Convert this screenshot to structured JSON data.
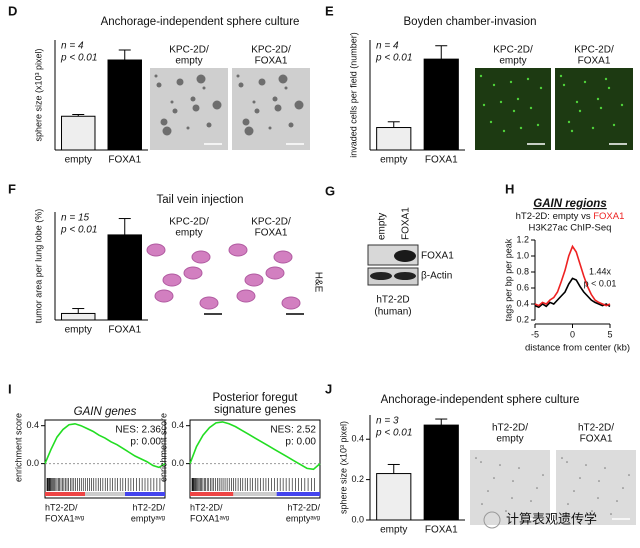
{
  "chart_data": [
    {
      "type": "bar",
      "label": "D",
      "title": "Anchorage-independent sphere culture",
      "y_label": "sphere size (x10³ pixel)",
      "annotations": [
        "n = 4",
        "p < 0.01"
      ],
      "categories": [
        "empty",
        "FOXA1"
      ],
      "values": [
        1.35,
        3.6
      ],
      "errors": [
        0.07,
        0.4
      ],
      "colors": [
        "#eeeeee",
        "#000000"
      ],
      "ylim": [
        0,
        4.4
      ],
      "image_captions": [
        [
          "KPC-2D/",
          "empty"
        ],
        [
          "KPC-2D/",
          "FOXA1"
        ]
      ]
    },
    {
      "type": "bar",
      "label": "E",
      "title": "Boyden chamber-invasion",
      "y_label": "invaded cells per field (number)",
      "annotations": [
        "n = 4",
        "p < 0.01"
      ],
      "categories": [
        "empty",
        "FOXA1"
      ],
      "values": [
        47,
        190
      ],
      "errors": [
        12,
        28
      ],
      "colors": [
        "#eeeeee",
        "#000000"
      ],
      "ylim": [
        0,
        230
      ],
      "image_captions": [
        [
          "KPC-2D/",
          "empty"
        ],
        [
          "KPC-2D/",
          "FOXA1"
        ]
      ]
    },
    {
      "type": "bar",
      "label": "F",
      "title": "Tail vein injection",
      "y_label": "tumor area per lung lobe (%)",
      "annotations": [
        "n = 15",
        "p < 0.01"
      ],
      "categories": [
        "empty",
        "FOXA1"
      ],
      "values": [
        4,
        52
      ],
      "errors": [
        3,
        10
      ],
      "colors": [
        "#eeeeee",
        "#000000"
      ],
      "ylim": [
        0,
        66
      ],
      "image_captions": [
        [
          "KPC-2D/",
          "empty"
        ],
        [
          "KPC-2D/",
          "FOXA1"
        ]
      ],
      "image_note": "H&E"
    },
    {
      "type": "line",
      "label": "H",
      "title": "GAIN regions",
      "subtitle": [
        "hT2-2D: empty vs ",
        "FOXA1"
      ],
      "subtitle2": "H3K27ac ChIP-Seq",
      "x_label": "distance from center (kb)",
      "y_label": "tags per bp per peak",
      "annotations": [
        "1.44x",
        "p < 0.01"
      ],
      "x": [
        -5,
        -4.5,
        -4,
        -3.5,
        -3,
        -2.5,
        -2,
        -1.5,
        -1,
        -0.5,
        0,
        0.5,
        1,
        1.5,
        2,
        2.5,
        3,
        3.5,
        4,
        4.5,
        5
      ],
      "series": [
        {
          "color": "#000000",
          "values": [
            0.38,
            0.36,
            0.4,
            0.37,
            0.42,
            0.4,
            0.45,
            0.5,
            0.55,
            0.65,
            0.72,
            0.7,
            0.62,
            0.55,
            0.5,
            0.45,
            0.42,
            0.4,
            0.38,
            0.4,
            0.37
          ]
        },
        {
          "color": "#ee2222",
          "values": [
            0.4,
            0.38,
            0.42,
            0.4,
            0.45,
            0.48,
            0.55,
            0.68,
            0.82,
            1.0,
            1.12,
            1.05,
            0.9,
            0.75,
            0.62,
            0.52,
            0.45,
            0.42,
            0.4,
            0.38,
            0.4
          ]
        }
      ],
      "xlim": [
        -5,
        5
      ],
      "xticks": [
        -5,
        0,
        5
      ],
      "ylim": [
        0.2,
        1.2
      ],
      "yticks": [
        0.2,
        0.4,
        0.6,
        0.8,
        {
          "value": 1,
          "label": "1.0"
        },
        1.2
      ]
    },
    {
      "type": "line",
      "label": "I",
      "title": [
        "GAIN genes"
      ],
      "y_label": "enrichment score",
      "annotations": [
        "NES: 2.36",
        "p: 0.00"
      ],
      "color": "#22dd22",
      "values": [
        0,
        0.15,
        0.28,
        0.36,
        0.41,
        0.42,
        0.4,
        0.37,
        0.34,
        0.3,
        0.27,
        0.23,
        0.2,
        0.16,
        0.12,
        0.08,
        0.05,
        0.02,
        -0.02,
        -0.04,
        0
      ],
      "ylim": [
        -0.12,
        0.46
      ],
      "yticks": [
        {
          "value": 0,
          "label": "0.0"
        },
        0.4
      ],
      "end_labels": [
        [
          "hT2-2D/",
          "FOXA1ᵃᵛᵍ"
        ],
        [
          "hT2-2D/",
          "emptyᵃᵛᵍ"
        ]
      ]
    },
    {
      "type": "line",
      "title": [
        "Posterior foregut",
        "signature genes"
      ],
      "y_label": "enrichment score",
      "annotations": [
        "NES: 2.52",
        "p: 0.00"
      ],
      "color": "#22dd22",
      "values": [
        0,
        0.18,
        0.3,
        0.38,
        0.43,
        0.44,
        0.42,
        0.39,
        0.35,
        0.31,
        0.27,
        0.23,
        0.19,
        0.15,
        0.11,
        0.07,
        0.03,
        -0.01,
        -0.05,
        -0.06,
        0
      ],
      "ylim": [
        -0.12,
        0.46
      ],
      "yticks": [
        {
          "value": 0,
          "label": "0.0"
        },
        0.4
      ],
      "end_labels": [
        [
          "hT2-2D/",
          "FOXA1ᵃᵛᵍ"
        ],
        [
          "hT2-2D/",
          "emptyᵃᵛᵍ"
        ]
      ]
    },
    {
      "type": "bar",
      "label": "J",
      "title": "Anchorage-independent sphere culture",
      "y_label": "sphere size (x10³ pixel)",
      "annotations": [
        "n = 3",
        "p < 0.01"
      ],
      "categories": [
        "empty",
        "FOXA1"
      ],
      "values": [
        0.23,
        0.47
      ],
      "errors": [
        0.045,
        0.03
      ],
      "colors": [
        "#eeeeee",
        "#000000"
      ],
      "ylim": [
        0,
        0.52
      ],
      "yticks": [
        {
          "value": 0,
          "label": "0.0"
        },
        0.2,
        0.4
      ],
      "image_captions": [
        [
          "hT2-2D/",
          "empty"
        ],
        [
          "hT2-2D/",
          "FOXA1"
        ]
      ]
    }
  ],
  "blot": {
    "label": "G",
    "lanes": [
      "empty",
      "FOXA1"
    ],
    "bands": [
      "FOXA1",
      "β-Actin"
    ],
    "caption": [
      "hT2-2D",
      "(human)"
    ]
  },
  "watermark": "计算表观遗传学"
}
